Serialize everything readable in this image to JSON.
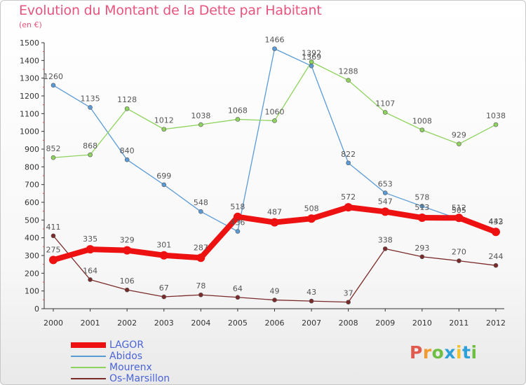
{
  "header": {
    "title": "Evolution du Montant de la Dette par Habitant",
    "unit": "(en €)"
  },
  "logo": {
    "text": "Proxiti",
    "letters": [
      {
        "ch": "P",
        "color": "#e05a4e"
      },
      {
        "ch": "r",
        "color": "#f29a2e"
      },
      {
        "ch": "o",
        "color": "#6fbf44"
      },
      {
        "ch": "x",
        "color": "#2f9fd8"
      },
      {
        "ch": "i",
        "color": "#f2c12e"
      },
      {
        "ch": "t",
        "color": "#2f9fd8"
      },
      {
        "ch": "i",
        "color": "#6fbf44"
      }
    ]
  },
  "chart_data": {
    "type": "line",
    "title": "Evolution du Montant de la Dette par Habitant",
    "ylabel": "(en €)",
    "xlabel": "",
    "x": [
      "2000",
      "2001",
      "2002",
      "2003",
      "2004",
      "2005",
      "2006",
      "2007",
      "2008",
      "2009",
      "2010",
      "2011",
      "2012"
    ],
    "ylim": [
      0,
      1500
    ],
    "yticks": [
      0,
      100,
      200,
      300,
      400,
      500,
      600,
      700,
      800,
      900,
      1000,
      1100,
      1200,
      1300,
      1400,
      1500
    ],
    "grid": false,
    "legend_position": "bottom-left",
    "series": [
      {
        "name": "LAGOR",
        "color": "#ee1111",
        "values": [
          275,
          335,
          329,
          301,
          287,
          518,
          487,
          508,
          572,
          547,
          513,
          512,
          433
        ],
        "labels": [
          "275",
          "335",
          "329",
          "301",
          "287",
          "518",
          "487",
          "508",
          "572",
          "547",
          "513",
          "512",
          "433"
        ]
      },
      {
        "name": "Abidos",
        "color": "#5b9bd5",
        "values": [
          1260,
          1135,
          840,
          699,
          548,
          436,
          1466,
          1369,
          822,
          653,
          578,
          505,
          442
        ],
        "labels": [
          "1260",
          "1135",
          "840",
          "699",
          "548",
          "436",
          "1466",
          "1369",
          "822",
          "653",
          "578",
          "505",
          "442"
        ]
      },
      {
        "name": "Mourenx",
        "color": "#8ed35d",
        "values": [
          852,
          868,
          1128,
          1012,
          1038,
          1068,
          1060,
          1392,
          1288,
          1107,
          1008,
          929,
          1038
        ],
        "labels": [
          "852",
          "868",
          "1128",
          "1012",
          "1038",
          "1068",
          "1060",
          "1392",
          "1288",
          "1107",
          "1008",
          "929",
          "1038"
        ]
      },
      {
        "name": "Os-Marsillon",
        "color": "#7b2a2a",
        "values": [
          411,
          164,
          106,
          67,
          78,
          64,
          49,
          43,
          37,
          338,
          293,
          270,
          244
        ],
        "labels": [
          "411",
          "164",
          "106",
          "67",
          "78",
          "64",
          "49",
          "43",
          "37",
          "338",
          "293",
          "270",
          "244"
        ]
      }
    ]
  }
}
